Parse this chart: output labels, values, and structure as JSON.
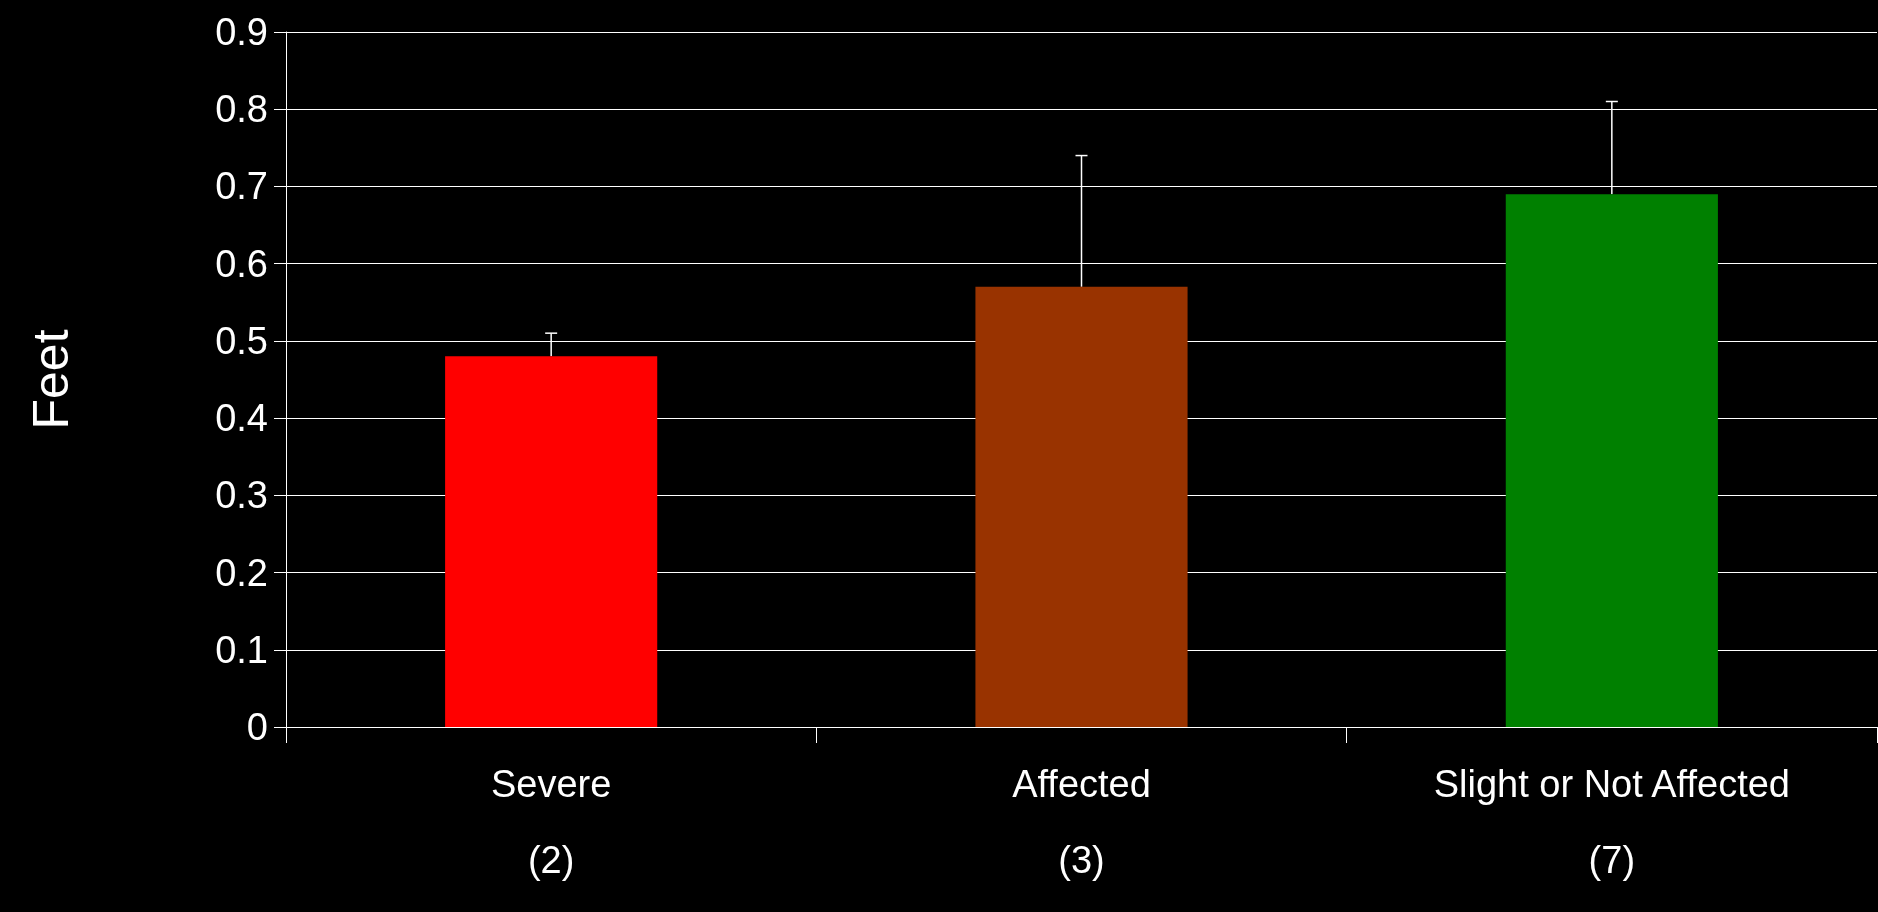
{
  "chart_data": {
    "type": "bar",
    "ylabel": "Feet",
    "categories": [
      "Severe\n\n(2)",
      "Affected\n\n(3)",
      "Slight or Not Affected\n\n(7)"
    ],
    "values": [
      0.48,
      0.57,
      0.69
    ],
    "colors": [
      "#ff0000",
      "#993300",
      "#008000"
    ],
    "errors": [
      [
        0.48,
        0.51
      ],
      [
        0.57,
        0.74
      ],
      [
        0.69,
        0.81
      ]
    ],
    "ylim": [
      0,
      0.9
    ],
    "yticks": [
      0,
      0.1,
      0.2,
      0.3,
      0.4,
      0.5,
      0.6,
      0.7,
      0.8,
      0.9
    ],
    "grid": "y"
  }
}
